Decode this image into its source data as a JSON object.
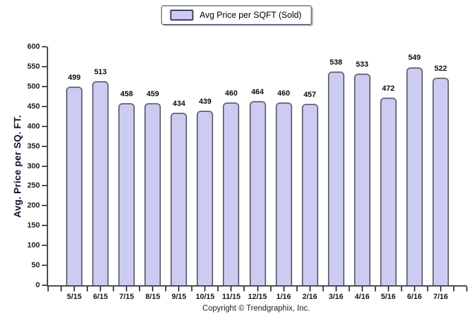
{
  "chart_data": {
    "type": "bar",
    "legend": "Avg Price per SQFT (Sold)",
    "legend_position": "top-center",
    "categories": [
      "5/15",
      "6/15",
      "7/15",
      "8/15",
      "9/15",
      "10/15",
      "11/15",
      "12/15",
      "1/16",
      "2/16",
      "3/16",
      "4/16",
      "5/16",
      "6/16",
      "7/16"
    ],
    "values": [
      499,
      513,
      458,
      459,
      434,
      439,
      460,
      464,
      460,
      457,
      538,
      533,
      472,
      549,
      522
    ],
    "title": "",
    "xlabel": "",
    "ylabel": "Avg. Price per SQ. FT.",
    "ylim": [
      0,
      600
    ],
    "ytick_step": 50,
    "grid": false,
    "footer": "Copyright © Trendgraphix, Inc.",
    "colors": {
      "bar_fill": "#ccccf2",
      "bar_border": "#6e6e80",
      "axis": "#4a4a55",
      "text": "#1a1a1a"
    }
  }
}
